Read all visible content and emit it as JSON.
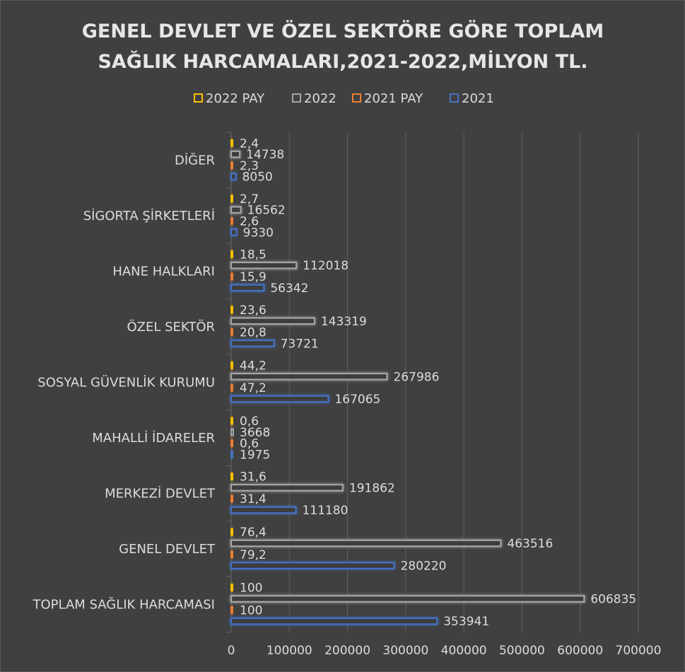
{
  "chart_data": {
    "type": "bar",
    "orientation": "horizontal",
    "title_lines": [
      "GENEL DEVLET VE ÖZEL SEKTÖRE GÖRE TOPLAM",
      "SAĞLIK HARCAMALARI,2021-2022,MİLYON TL."
    ],
    "categories": [
      "DİĞER",
      "SİGORTA ŞİRKETLERİ",
      "HANE HALKLARI",
      "ÖZEL SEKTÖR",
      "SOSYAL GÜVENLİK KURUMU",
      "MAHALLİ İDARELER",
      "MERKEZİ DEVLET",
      "GENEL DEVLET",
      "TOPLAM SAĞLIK HARCAMASI"
    ],
    "series": [
      {
        "name": "2022 PAY",
        "color": "#ffc000",
        "values": [
          2.4,
          2.7,
          18.5,
          23.6,
          44.2,
          0.6,
          31.6,
          76.4,
          100
        ],
        "labels": [
          "2,4",
          "2,7",
          "18,5",
          "23,6",
          "44,2",
          "0,6",
          "31,6",
          "76,4",
          "100"
        ]
      },
      {
        "name": "2022",
        "color": "#a5a5a5",
        "values": [
          14738,
          16562,
          112018,
          143319,
          267986,
          3668,
          191862,
          463516,
          606835
        ],
        "labels": [
          "14738",
          "16562",
          "112018",
          "143319",
          "267986",
          "3668",
          "191862",
          "463516",
          "606835"
        ]
      },
      {
        "name": "2021 PAY",
        "color": "#ed7d31",
        "values": [
          2.3,
          2.6,
          15.9,
          20.8,
          47.2,
          0.6,
          31.4,
          79.2,
          100
        ],
        "labels": [
          "2,3",
          "2,6",
          "15,9",
          "20,8",
          "47,2",
          "0,6",
          "31,4",
          "79,2",
          "100"
        ]
      },
      {
        "name": "2021",
        "color": "#4472c4",
        "values": [
          8050,
          9330,
          56342,
          73721,
          167065,
          1975,
          111180,
          280220,
          353941
        ],
        "labels": [
          "8050",
          "9330",
          "56342",
          "73721",
          "167065",
          "1975",
          "111180",
          "280220",
          "353941"
        ]
      }
    ],
    "x_ticks": [
      "0",
      "100000",
      "200000",
      "300000",
      "400000",
      "500000",
      "600000",
      "700000"
    ],
    "xlim": [
      0,
      700000
    ],
    "grid": true,
    "legend_position": "top"
  }
}
